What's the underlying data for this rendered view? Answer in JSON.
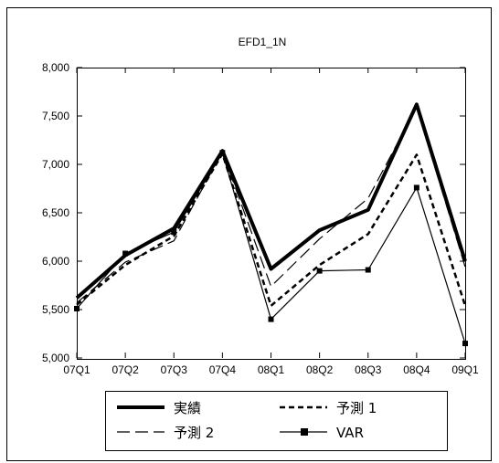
{
  "chart_data": {
    "type": "line",
    "title": "EFD1_1N",
    "xlabel": "",
    "ylabel": "",
    "x": [
      "07Q1",
      "07Q2",
      "07Q3",
      "07Q4",
      "08Q1",
      "08Q2",
      "08Q3",
      "08Q4",
      "09Q1"
    ],
    "ylim": [
      5000,
      8000
    ],
    "yticks": [
      5000,
      5500,
      6000,
      6500,
      7000,
      7500,
      8000
    ],
    "ytick_labels": [
      "5,000",
      "5,500",
      "6,000",
      "6,500",
      "7,000",
      "7,500",
      "8,000"
    ],
    "grid": false,
    "legend_position": "bottom",
    "series": [
      {
        "name": "実績",
        "style": "thick-solid",
        "color": "#000000",
        "values": [
          5620,
          6060,
          6340,
          7140,
          5920,
          6320,
          6530,
          7620,
          6000
        ]
      },
      {
        "name": "予測 1",
        "style": "dashed",
        "color": "#000000",
        "values": [
          5550,
          5960,
          6260,
          7110,
          5540,
          5960,
          6280,
          7100,
          5540
        ]
      },
      {
        "name": "予測 2",
        "style": "long-dash",
        "color": "#000000",
        "values": [
          5570,
          5990,
          6210,
          7130,
          5740,
          6230,
          6650,
          7590,
          5940
        ]
      },
      {
        "name": "VAR",
        "style": "solid-square-markers",
        "color": "#000000",
        "values": [
          5510,
          6080,
          6300,
          7120,
          5400,
          5900,
          5910,
          6760,
          5150
        ]
      }
    ]
  }
}
